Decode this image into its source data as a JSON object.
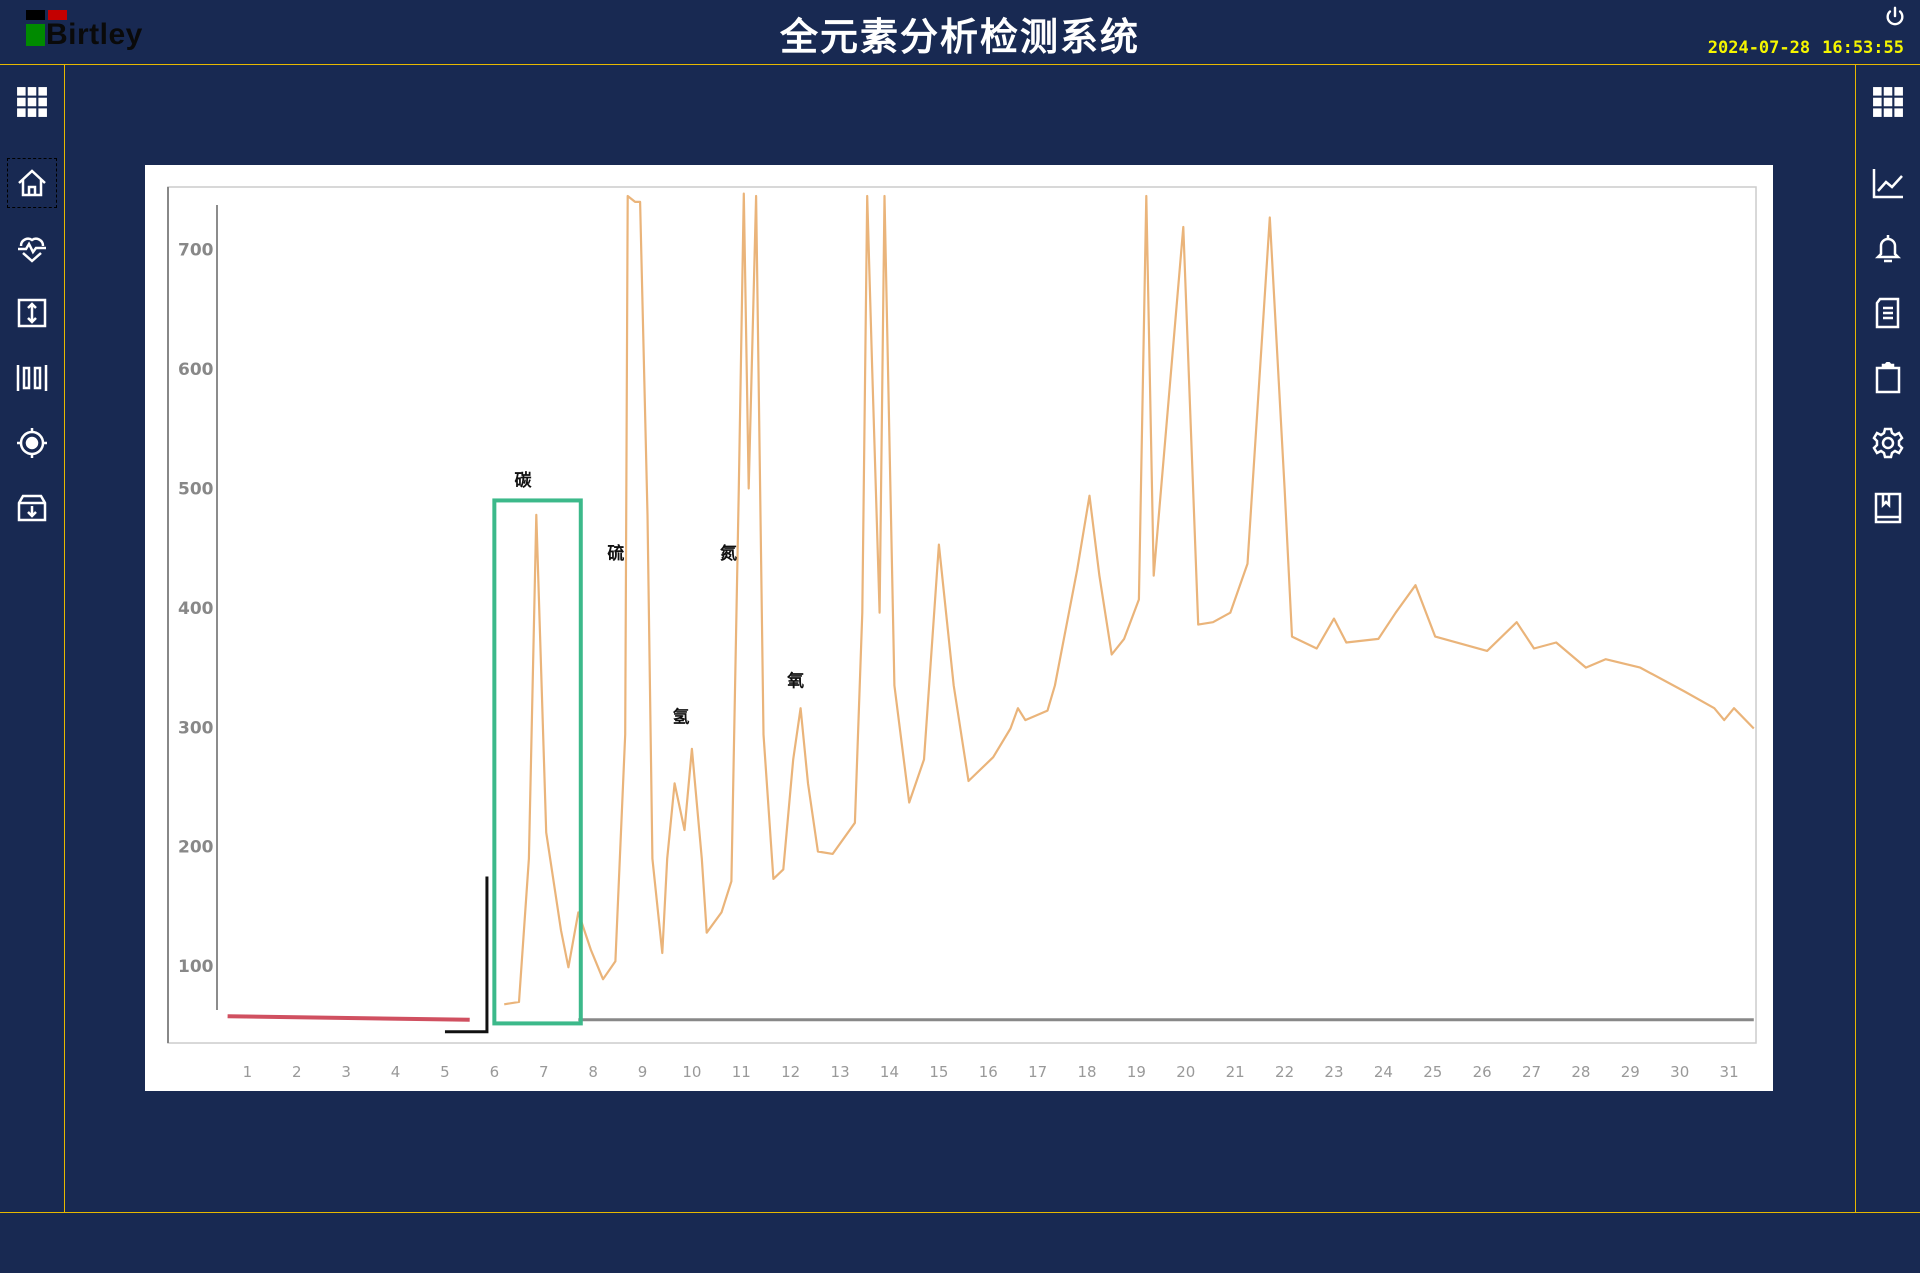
{
  "header": {
    "logo_text": "Birtley",
    "title": "全元素分析检测系统",
    "date": "2024-07-28",
    "time": "16:53:55",
    "power_icon": "power-icon"
  },
  "left_sidebar": {
    "items": [
      {
        "icon": "grid-menu-icon"
      },
      {
        "icon": "home-icon",
        "selected": true
      },
      {
        "icon": "heartbeat-icon"
      },
      {
        "icon": "vertical-resize-icon"
      },
      {
        "icon": "columns-icon"
      },
      {
        "icon": "target-icon"
      },
      {
        "icon": "archive-download-icon"
      }
    ]
  },
  "right_sidebar": {
    "items": [
      {
        "icon": "grid-menu-icon"
      },
      {
        "icon": "line-chart-icon"
      },
      {
        "icon": "bell-icon"
      },
      {
        "icon": "document-icon"
      },
      {
        "icon": "clipboard-icon"
      },
      {
        "icon": "gear-icon"
      },
      {
        "icon": "book-icon"
      }
    ]
  },
  "colors": {
    "background": "#182952",
    "accent_line": "#e6b800",
    "clock": "#f5f500",
    "trace": "#eab47a",
    "highlight_box": "#3cb98a",
    "baseline_red": "#d05060"
  },
  "chart_data": {
    "type": "line",
    "xlim": [
      0,
      31.6
    ],
    "ylim": [
      15,
      760
    ],
    "x_ticks": [
      1,
      2,
      3,
      4,
      5,
      6,
      7,
      8,
      9,
      10,
      11,
      12,
      13,
      14,
      15,
      16,
      17,
      18,
      19,
      20,
      21,
      22,
      23,
      24,
      25,
      26,
      27,
      28,
      29,
      30,
      31
    ],
    "y_ticks": [
      100,
      200,
      300,
      400,
      500,
      600,
      700
    ],
    "grid": false,
    "series": [
      {
        "x": [
          6.2,
          6.5,
          6.7,
          6.85,
          7.05,
          7.35,
          7.5,
          7.7,
          7.95,
          8.2,
          8.45,
          8.65,
          8.7,
          8.85,
          8.95,
          9.1,
          9.2,
          9.4,
          9.5,
          9.65,
          9.85,
          10.0,
          10.2,
          10.3,
          10.6,
          10.8,
          10.95,
          11.05,
          11.15,
          11.3,
          11.45,
          11.65,
          11.85,
          12.05,
          12.2,
          12.35,
          12.55,
          12.85,
          13.3,
          13.45,
          13.55,
          13.65,
          13.8,
          13.9,
          14.1,
          14.4,
          14.7,
          15.0,
          15.3,
          15.6,
          16.1,
          16.45,
          16.6,
          16.75,
          17.2,
          17.35,
          17.8,
          18.05,
          18.25,
          18.5,
          18.75,
          19.05,
          19.2,
          19.35,
          19.95,
          20.25,
          20.55,
          20.9,
          21.25,
          21.7,
          22.0,
          22.15,
          22.65,
          23.0,
          23.25,
          23.9,
          24.25,
          24.65,
          25.05,
          26.1,
          26.7,
          27.05,
          27.5,
          28.1,
          28.5,
          29.2,
          30.1,
          30.7,
          30.9,
          31.1,
          31.5
        ],
        "y": [
          68,
          70,
          190,
          478,
          212,
          130,
          99,
          145,
          114,
          89,
          104,
          294,
          745,
          740,
          740,
          478,
          190,
          111,
          190,
          253,
          214,
          282,
          190,
          128,
          145,
          171,
          500,
          747,
          500,
          745,
          294,
          173,
          181,
          273,
          316,
          253,
          196,
          194,
          220,
          396,
          745,
          600,
          396,
          745,
          335,
          237,
          273,
          453,
          335,
          255,
          275,
          299,
          316,
          306,
          314,
          335,
          432,
          494,
          427,
          361,
          374,
          407,
          745,
          427,
          719,
          386,
          388,
          396,
          437,
          727,
          500,
          376,
          366,
          391,
          371,
          374,
          396,
          419,
          376,
          364,
          388,
          366,
          371,
          350,
          357,
          350,
          330,
          316,
          306,
          316,
          299
        ]
      },
      {
        "x": [
          0.6,
          5.5
        ],
        "y": [
          58,
          55
        ]
      },
      {
        "x": [
          7.7,
          31.5
        ],
        "y": [
          55,
          55
        ]
      }
    ],
    "annotations": [
      {
        "text": "碳",
        "x": 6.58,
        "y": 502
      },
      {
        "text": "硫",
        "x": 8.46,
        "y": 441
      },
      {
        "text": "氢",
        "x": 9.78,
        "y": 304
      },
      {
        "text": "氮",
        "x": 10.74,
        "y": 441
      },
      {
        "text": "氧",
        "x": 12.1,
        "y": 334
      }
    ],
    "highlight_box": {
      "x": [
        6.0,
        7.75
      ],
      "y": [
        52,
        490
      ]
    },
    "bracket": {
      "x": [
        5.0,
        5.85
      ],
      "y": [
        45,
        175
      ]
    }
  }
}
